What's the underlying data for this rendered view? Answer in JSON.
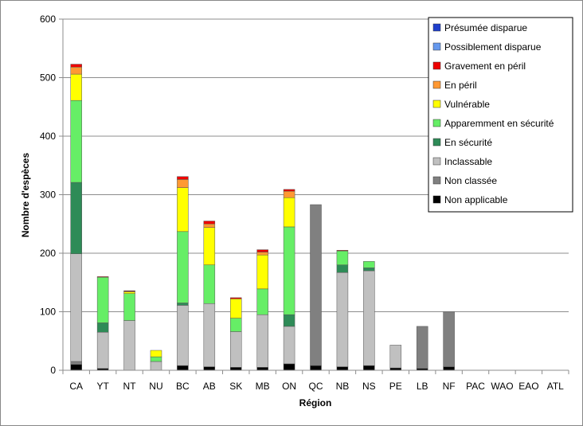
{
  "chart_data": {
    "type": "bar",
    "stacked": true,
    "xlabel": "Région",
    "ylabel": "Nombre d'espèces",
    "ylim": [
      0,
      600
    ],
    "yticks": [
      0,
      100,
      200,
      300,
      400,
      500,
      600
    ],
    "grid": true,
    "legend_position": "top-right",
    "categories": [
      "CA",
      "YT",
      "NT",
      "NU",
      "BC",
      "AB",
      "SK",
      "MB",
      "ON",
      "QC",
      "NB",
      "NS",
      "PE",
      "LB",
      "NF",
      "PAC",
      "WAO",
      "EAO",
      "ATL"
    ],
    "series": [
      {
        "name": "Non applicable",
        "color": "#000000",
        "values": [
          10,
          3,
          0,
          0,
          8,
          6,
          5,
          5,
          11,
          8,
          6,
          8,
          4,
          3,
          6,
          0,
          0,
          0,
          0
        ]
      },
      {
        "name": "Non classée",
        "color": "#808080",
        "values": [
          5,
          0,
          0,
          0,
          0,
          0,
          0,
          0,
          0,
          275,
          0,
          0,
          0,
          72,
          94,
          0,
          0,
          0,
          0
        ]
      },
      {
        "name": "Inclassable",
        "color": "#c0c0c0",
        "values": [
          184,
          62,
          85,
          15,
          103,
          108,
          61,
          90,
          64,
          0,
          161,
          162,
          39,
          0,
          0,
          0,
          0,
          0,
          0
        ]
      },
      {
        "name": "En sécurité",
        "color": "#2e8b57",
        "values": [
          122,
          16,
          0,
          0,
          4,
          0,
          0,
          0,
          20,
          0,
          13,
          5,
          0,
          0,
          0,
          0,
          0,
          0,
          0
        ]
      },
      {
        "name": "Apparemment en sécurité",
        "color": "#66ee66",
        "values": [
          140,
          78,
          46,
          8,
          122,
          66,
          23,
          44,
          150,
          0,
          24,
          11,
          0,
          0,
          0,
          0,
          0,
          0,
          0
        ]
      },
      {
        "name": "Vulnérable",
        "color": "#ffff00",
        "values": [
          45,
          0,
          3,
          11,
          75,
          64,
          33,
          58,
          50,
          0,
          0,
          0,
          0,
          0,
          0,
          0,
          0,
          0,
          0
        ]
      },
      {
        "name": "En péril",
        "color": "#ff9933",
        "values": [
          12,
          0,
          1,
          0,
          14,
          6,
          0,
          5,
          11,
          0,
          0,
          0,
          0,
          0,
          0,
          0,
          0,
          0,
          0
        ]
      },
      {
        "name": "Gravement en péril",
        "color": "#ee0000",
        "values": [
          5,
          1,
          1,
          0,
          5,
          5,
          2,
          4,
          3,
          0,
          1,
          0,
          0,
          0,
          0,
          0,
          0,
          0,
          0
        ]
      },
      {
        "name": "Possiblement disparue",
        "color": "#6699ee",
        "values": [
          0,
          0,
          0,
          0,
          0,
          0,
          0,
          0,
          0,
          0,
          0,
          0,
          0,
          0,
          0,
          0,
          0,
          0,
          0
        ]
      },
      {
        "name": "Présumée disparue",
        "color": "#1f3fcc",
        "values": [
          0,
          0,
          0,
          0,
          0,
          0,
          0,
          0,
          0,
          0,
          0,
          0,
          0,
          0,
          0,
          0,
          0,
          0,
          0
        ]
      }
    ],
    "legend_order": [
      "Présumée disparue",
      "Possiblement disparue",
      "Gravement en péril",
      "En péril",
      "Vulnérable",
      "Apparemment en sécurité",
      "En sécurité",
      "Inclassable",
      "Non classée",
      "Non applicable"
    ]
  }
}
